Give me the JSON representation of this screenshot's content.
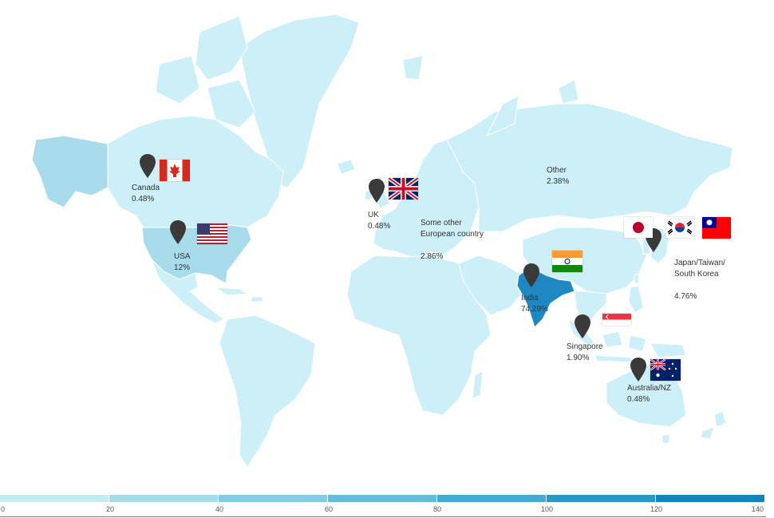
{
  "regions": [
    {
      "id": "india",
      "name": "India",
      "value": "74.29%",
      "tier": 7
    },
    {
      "id": "usa",
      "name": "USA",
      "value": "12%",
      "tier": 1
    },
    {
      "id": "japan-taiwan-korea",
      "name": "Japan/Taiwan/\nSouth Korea",
      "value": "4.76%",
      "tier": 0
    },
    {
      "id": "europe-other",
      "name": "Some other\nEuropean country",
      "value": "2.86%",
      "tier": 0
    },
    {
      "id": "other",
      "name": "Other",
      "value": "2.38%",
      "tier": 0
    },
    {
      "id": "singapore",
      "name": "Singapore",
      "value": "1.90%",
      "tier": 0
    },
    {
      "id": "canada",
      "name": "Canada",
      "value": "0.48%",
      "tier": 0
    },
    {
      "id": "uk",
      "name": "UK",
      "value": "0.48%",
      "tier": 0
    },
    {
      "id": "australia-nz",
      "name": "Australia/NZ",
      "value": "0.48%",
      "tier": 0
    }
  ],
  "flags": [
    "canada-flag",
    "usa-flag",
    "uk-flag",
    "india-flag",
    "japan-flag",
    "south-korea-flag",
    "taiwan-flag",
    "singapore-flag",
    "australia-flag"
  ],
  "legend": {
    "ticks": [
      "0",
      "20",
      "40",
      "60",
      "80",
      "100",
      "120",
      "140"
    ],
    "colors": [
      "#c5ecf5",
      "#a4dcea",
      "#85cde2",
      "#63bcd8",
      "#45aad0",
      "#2a97c6",
      "#1484bc"
    ]
  },
  "colors": {
    "land": "#cdeff7",
    "land_tier1": "#a8dcea",
    "land_india": "#1f88c2",
    "pin": "#3a3a3a"
  }
}
